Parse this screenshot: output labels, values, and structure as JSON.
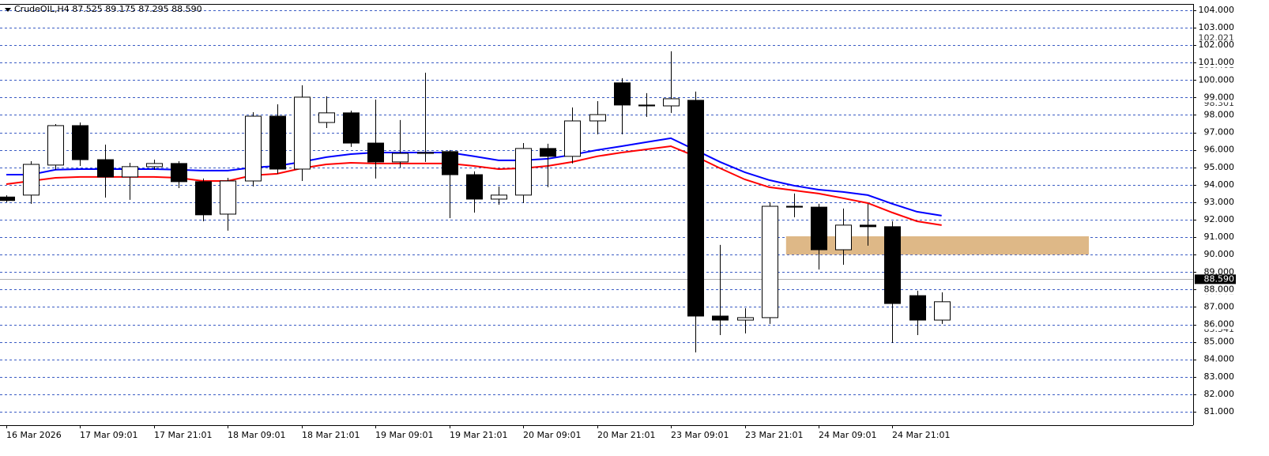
{
  "chart_data": {
    "type": "candlestick",
    "title": "CrudeOIL,H4  87.525 89.175 87.295 88.590",
    "categories": [
      "16 Mar 2026",
      null,
      null,
      "17 Mar 09:01",
      null,
      null,
      "17 Mar 21:01",
      null,
      null,
      "18 Mar 09:01",
      null,
      null,
      "18 Mar 21:01",
      null,
      null,
      "19 Mar 09:01",
      null,
      null,
      "19 Mar 21:01",
      null,
      null,
      "20 Mar 09:01",
      null,
      null,
      "20 Mar 21:01",
      null,
      null,
      "23 Mar 09:01",
      null,
      null,
      "23 Mar 21:01",
      null,
      null,
      "24 Mar 09:01",
      null,
      null,
      "24 Mar 21:01",
      null,
      null
    ],
    "open": [
      93.3,
      93.41,
      95.13,
      97.39,
      95.44,
      94.45,
      95.04,
      95.22,
      94.18,
      92.32,
      94.22,
      97.93,
      94.9,
      97.57,
      98.12,
      96.39,
      95.31,
      95.8,
      95.9,
      94.58,
      93.18,
      93.41,
      96.08,
      95.63,
      97.66,
      99.84,
      98.57,
      98.52,
      98.84,
      86.48,
      86.25,
      86.39,
      92.77,
      92.72,
      90.28,
      91.69,
      91.6,
      87.65,
      86.25
    ],
    "high": [
      93.4,
      95.35,
      97.48,
      97.57,
      96.3,
      95.26,
      95.44,
      95.35,
      94.36,
      94.4,
      98.16,
      98.61,
      99.7,
      99.07,
      98.25,
      98.88,
      97.71,
      100.42,
      95.99,
      94.77,
      93.9,
      96.39,
      96.35,
      98.43,
      98.79,
      100.11,
      99.25,
      101.65,
      99.34,
      90.56,
      86.93,
      93.0,
      93.5,
      92.91,
      92.64,
      92.91,
      91.91,
      87.93,
      87.84
    ],
    "low": [
      93.0,
      92.91,
      94.86,
      95.08,
      93.27,
      93.14,
      94.86,
      93.81,
      91.91,
      91.37,
      93.9,
      94.63,
      94.22,
      97.25,
      96.17,
      94.36,
      94.99,
      95.31,
      92.09,
      92.41,
      92.86,
      92.95,
      93.86,
      95.22,
      96.89,
      96.89,
      97.89,
      98.12,
      84.4,
      85.39,
      85.49,
      86.03,
      92.14,
      89.15,
      89.42,
      90.51,
      84.94,
      85.39,
      86.03
    ],
    "close": [
      93.1,
      95.17,
      97.39,
      95.44,
      94.45,
      95.04,
      95.22,
      94.18,
      92.28,
      94.22,
      97.93,
      94.9,
      99.02,
      98.12,
      96.39,
      95.31,
      95.8,
      95.85,
      94.58,
      93.18,
      93.41,
      96.08,
      95.63,
      97.66,
      98.02,
      98.57,
      98.52,
      98.93,
      86.48,
      86.25,
      86.39,
      92.77,
      92.72,
      90.28,
      91.69,
      91.6,
      87.2,
      86.25,
      87.3
    ],
    "up_color": "#ffffff",
    "down_color": "#000000",
    "series": [
      {
        "color": "#0000ff",
        "values": [
          94.58,
          94.58,
          94.86,
          94.9,
          94.9,
          94.9,
          94.9,
          94.86,
          94.81,
          94.81,
          94.99,
          95.08,
          95.31,
          95.58,
          95.76,
          95.85,
          95.85,
          95.85,
          95.85,
          95.63,
          95.4,
          95.4,
          95.49,
          95.72,
          95.99,
          96.21,
          96.44,
          96.67,
          95.99,
          95.31,
          94.72,
          94.27,
          93.95,
          93.72,
          93.59,
          93.41,
          92.91,
          92.46,
          92.23
        ]
      },
      {
        "color": "#ff0000",
        "values": [
          94.04,
          94.22,
          94.4,
          94.45,
          94.45,
          94.45,
          94.45,
          94.4,
          94.22,
          94.22,
          94.54,
          94.63,
          94.95,
          95.17,
          95.26,
          95.22,
          95.22,
          95.22,
          95.22,
          95.08,
          94.9,
          94.95,
          95.08,
          95.31,
          95.63,
          95.85,
          96.03,
          96.21,
          95.63,
          94.95,
          94.31,
          93.86,
          93.68,
          93.5,
          93.23,
          92.95,
          92.41,
          91.91,
          91.69
        ]
      }
    ],
    "zone": {
      "from": 90.0,
      "to": 91.05,
      "color": "#deb887"
    },
    "price_line": {
      "value": 88.59,
      "label": "88.590"
    },
    "levels": [
      {
        "value": 102.021,
        "label": "102.021"
      },
      {
        "value": 100.461,
        "label": "100.461"
      },
      {
        "value": 98.301,
        "label": "98.301"
      },
      {
        "value": 87.501,
        "label": "87.501"
      },
      {
        "value": 85.341,
        "label": "85.341"
      }
    ],
    "ylim": [
      80.23,
      104.36
    ],
    "yticks": [
      {
        "value": 81,
        "label": "81.000"
      },
      {
        "value": 82,
        "label": "82.000"
      },
      {
        "value": 83,
        "label": "83.000"
      },
      {
        "value": 84,
        "label": "84.000"
      },
      {
        "value": 85,
        "label": "85.000"
      },
      {
        "value": 86,
        "label": "86.000"
      },
      {
        "value": 87,
        "label": "87.000"
      },
      {
        "value": 88,
        "label": "88.000"
      },
      {
        "value": 89,
        "label": "89.000"
      },
      {
        "value": 90,
        "label": "90.000"
      },
      {
        "value": 91,
        "label": "91.000"
      },
      {
        "value": 92,
        "label": "92.000"
      },
      {
        "value": 93,
        "label": "93.000"
      },
      {
        "value": 94,
        "label": "94.000"
      },
      {
        "value": 95,
        "label": "95.000"
      },
      {
        "value": 96,
        "label": "96.000"
      },
      {
        "value": 97,
        "label": "97.000"
      },
      {
        "value": 98,
        "label": "98.000"
      },
      {
        "value": 99,
        "label": "99.000"
      },
      {
        "value": 100,
        "label": "100.000"
      },
      {
        "value": 101,
        "label": "101.000"
      },
      {
        "value": 102,
        "label": "102.000"
      },
      {
        "value": 103,
        "label": "103.000"
      },
      {
        "value": 104,
        "label": "104.000"
      }
    ],
    "grid": true
  }
}
